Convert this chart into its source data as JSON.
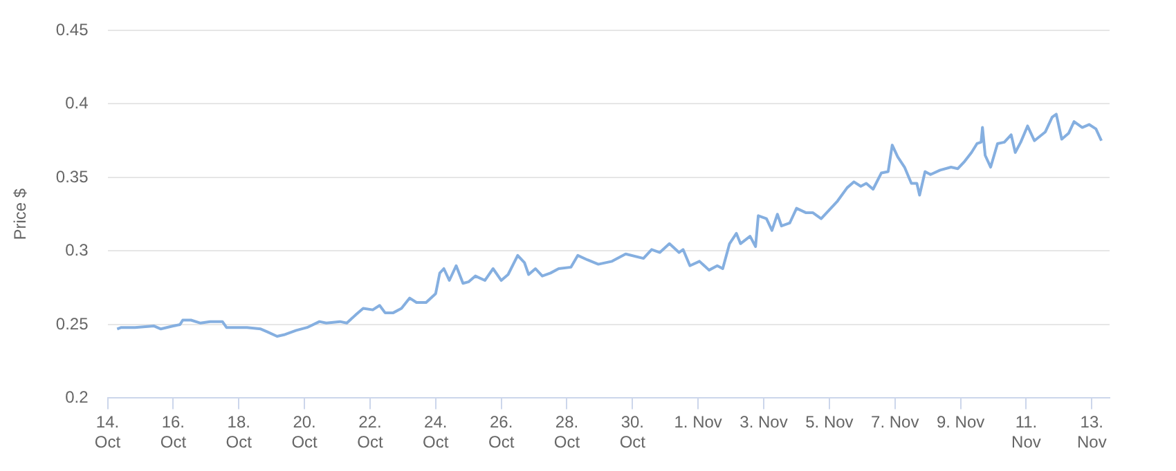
{
  "chart_data": {
    "type": "line",
    "ylabel": "Price $",
    "grid": "y",
    "marker": "none",
    "line_style": "solid",
    "xlim": [
      "--10-14",
      "--11-13T13:00"
    ],
    "ylim": [
      0.2,
      0.45
    ],
    "yticks": [
      0.2,
      0.25,
      0.3,
      0.35,
      0.4,
      0.45
    ],
    "xticks": [
      {
        "value": "--10-14",
        "label": "14. Oct"
      },
      {
        "value": "--10-16",
        "label": "16. Oct"
      },
      {
        "value": "--10-18",
        "label": "18. Oct"
      },
      {
        "value": "--10-20",
        "label": "20. Oct"
      },
      {
        "value": "--10-22",
        "label": "22. Oct"
      },
      {
        "value": "--10-24",
        "label": "24. Oct"
      },
      {
        "value": "--10-26",
        "label": "26. Oct"
      },
      {
        "value": "--10-28",
        "label": "28. Oct"
      },
      {
        "value": "--10-30",
        "label": "30. Oct"
      },
      {
        "value": "--11-01",
        "label": "1. Nov"
      },
      {
        "value": "--11-03",
        "label": "3. Nov"
      },
      {
        "value": "--11-05",
        "label": "5. Nov"
      },
      {
        "value": "--11-07",
        "label": "7. Nov"
      },
      {
        "value": "--11-09",
        "label": "9. Nov"
      },
      {
        "value": "--11-11",
        "label": "11. Nov"
      },
      {
        "value": "--11-13",
        "label": "13. Nov"
      }
    ],
    "x": [
      "--10-14T07:00",
      "--10-14T10:00",
      "--10-14T20:00",
      "--10-15T10:00",
      "--10-15T15:00",
      "--10-16T00:00",
      "--10-16T05:00",
      "--10-16T07:00",
      "--10-16T13:00",
      "--10-16T20:00",
      "--10-17T03:00",
      "--10-17T12:00",
      "--10-17T15:00",
      "--10-18T06:00",
      "--10-18T16:00",
      "--10-18T21:00",
      "--10-19T04:00",
      "--10-19T09:00",
      "--10-19T18:00",
      "--10-20T02:00",
      "--10-20T11:00",
      "--10-20T16:00",
      "--10-21T02:00",
      "--10-21T07:00",
      "--10-21T14:00",
      "--10-21T19:00",
      "--10-22T02:00",
      "--10-22T07:00",
      "--10-22T11:00",
      "--10-22T17:00",
      "--10-22T23:00",
      "--10-23T05:00",
      "--10-23T10:00",
      "--10-23T17:00",
      "--10-24T00:00",
      "--10-24T03:00",
      "--10-24T06:00",
      "--10-24T10:00",
      "--10-24T15:00",
      "--10-24T20:00",
      "--10-25T00:00",
      "--10-25T05:00",
      "--10-25T12:00",
      "--10-25T18:00",
      "--10-26T00:00",
      "--10-26T05:00",
      "--10-26T12:00",
      "--10-26T17:00",
      "--10-26T20:00",
      "--10-27T01:00",
      "--10-27T06:00",
      "--10-27T12:00",
      "--10-27T18:00",
      "--10-28T03:00",
      "--10-28T08:00",
      "--10-28T15:00",
      "--10-28T23:00",
      "--10-29T09:00",
      "--10-29T19:00",
      "--10-30T08:00",
      "--10-30T14:00",
      "--10-30T20:00",
      "--10-31T03:00",
      "--10-31T10:00",
      "--10-31T13:00",
      "--10-31T18:00",
      "--11-01T01:00",
      "--11-01T08:00",
      "--11-01T14:00",
      "--11-01T18:00",
      "--11-01T23:00",
      "--11-02T04:00",
      "--11-02T07:00",
      "--11-02T14:00",
      "--11-02T18:00",
      "--11-02T20:00",
      "--11-03T02:00",
      "--11-03T06:00",
      "--11-03T10:00",
      "--11-03T13:00",
      "--11-03T19:00",
      "--11-04T00:00",
      "--11-04T07:00",
      "--11-04T12:00",
      "--11-04T18:00",
      "--11-05T00:00",
      "--11-05T06:00",
      "--11-05T13:00",
      "--11-05T18:00",
      "--11-05T23:00",
      "--11-06T03:00",
      "--11-06T08:00",
      "--11-06T14:00",
      "--11-06T19:00",
      "--11-06T22:00",
      "--11-07T02:00",
      "--11-07T07:00",
      "--11-07T12:00",
      "--11-07T16:00",
      "--11-07T18:00",
      "--11-07T22:00",
      "--11-08T02:00",
      "--11-08T09:00",
      "--11-08T17:00",
      "--11-08T22:00",
      "--11-09T03:00",
      "--11-09T08:00",
      "--11-09T12:00",
      "--11-09T15:00",
      "--11-09T16:00",
      "--11-09T18:00",
      "--11-09T22:00",
      "--11-10T03:00",
      "--11-10T08:00",
      "--11-10T13:00",
      "--11-10T16:00",
      "--11-10T20:00",
      "--11-11T01:00",
      "--11-11T06:00",
      "--11-11T14:00",
      "--11-11T19:00",
      "--11-11T22:00",
      "--11-12T02:00",
      "--11-12T07:00",
      "--11-12T11:00",
      "--11-12T17:00",
      "--11-12T22:00",
      "--11-13T03:00",
      "--11-13T07:00"
    ],
    "series": [
      {
        "color": "#85afe0",
        "values": [
          0.247,
          0.248,
          0.248,
          0.249,
          0.247,
          0.249,
          0.25,
          0.253,
          0.253,
          0.251,
          0.252,
          0.252,
          0.248,
          0.248,
          0.247,
          0.245,
          0.242,
          0.243,
          0.246,
          0.248,
          0.252,
          0.251,
          0.252,
          0.251,
          0.257,
          0.261,
          0.26,
          0.263,
          0.258,
          0.258,
          0.261,
          0.268,
          0.265,
          0.265,
          0.271,
          0.285,
          0.288,
          0.28,
          0.29,
          0.278,
          0.279,
          0.283,
          0.28,
          0.288,
          0.28,
          0.284,
          0.297,
          0.292,
          0.284,
          0.288,
          0.283,
          0.285,
          0.288,
          0.289,
          0.297,
          0.294,
          0.291,
          0.293,
          0.298,
          0.295,
          0.301,
          0.299,
          0.305,
          0.299,
          0.301,
          0.29,
          0.293,
          0.287,
          0.29,
          0.288,
          0.305,
          0.312,
          0.305,
          0.31,
          0.303,
          0.324,
          0.322,
          0.314,
          0.325,
          0.317,
          0.319,
          0.329,
          0.326,
          0.326,
          0.322,
          0.328,
          0.334,
          0.343,
          0.347,
          0.344,
          0.346,
          0.342,
          0.353,
          0.354,
          0.372,
          0.364,
          0.357,
          0.346,
          0.346,
          0.338,
          0.354,
          0.352,
          0.355,
          0.357,
          0.356,
          0.361,
          0.367,
          0.373,
          0.374,
          0.384,
          0.365,
          0.357,
          0.373,
          0.374,
          0.379,
          0.367,
          0.374,
          0.385,
          0.375,
          0.381,
          0.391,
          0.393,
          0.376,
          0.38,
          0.388,
          0.384,
          0.386,
          0.383,
          0.375
        ]
      }
    ]
  }
}
